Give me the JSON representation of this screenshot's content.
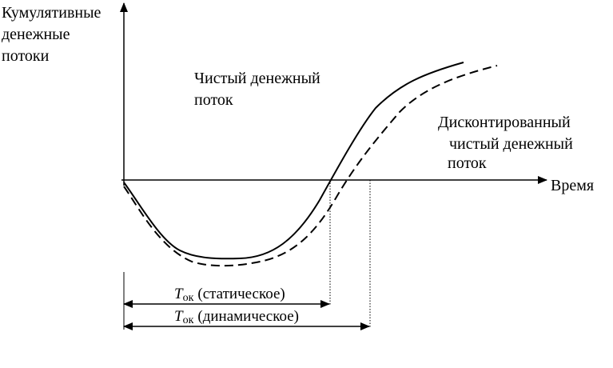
{
  "diagram": {
    "y_axis_label": [
      "Кумулятивные",
      "денежные",
      "потоки"
    ],
    "x_axis_label": "Время",
    "net_flow_label": [
      "Чистый денежный",
      "поток"
    ],
    "discounted_label": [
      "Дисконтированный",
      "чистый денежный",
      "поток"
    ],
    "static_period": {
      "symbol": "T",
      "subscript": "ок",
      "note": "(статическое)"
    },
    "dynamic_period": {
      "symbol": "T",
      "subscript": "ок",
      "note": "(динамическое)"
    },
    "colors": {
      "line": "#000000",
      "background": "#ffffff"
    }
  }
}
